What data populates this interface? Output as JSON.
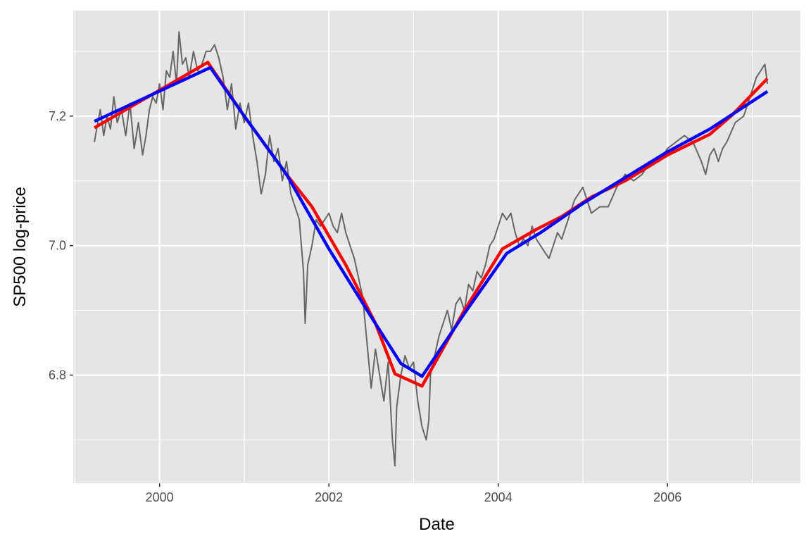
{
  "chart_data": {
    "type": "line",
    "title": "",
    "xlabel": "Date",
    "ylabel": "SP500 log-price",
    "xlim": [
      1998.98,
      2007.57
    ],
    "ylim": [
      6.633,
      7.363
    ],
    "x_ticks": [
      2000,
      2002,
      2004,
      2006
    ],
    "x_tick_labels": [
      "2000",
      "2002",
      "2004",
      "2006"
    ],
    "y_ticks": [
      6.8,
      7.0,
      7.2
    ],
    "y_tick_labels": [
      "6.8",
      "7.0",
      "7.2"
    ],
    "grid": true,
    "legend": "none",
    "colors": {
      "panel": "#e5e5e5",
      "grid": "#ffffff",
      "price": "#666666",
      "fit_red": "#ff0000",
      "fit_blue": "#0000ff"
    },
    "series": [
      {
        "color": "#666666",
        "role": "price",
        "x": [
          1999.23,
          1999.27,
          1999.3,
          1999.34,
          1999.38,
          1999.42,
          1999.46,
          1999.5,
          1999.55,
          1999.6,
          1999.65,
          1999.7,
          1999.75,
          1999.8,
          1999.84,
          1999.88,
          1999.92,
          1999.96,
          2000.0,
          2000.04,
          2000.08,
          2000.12,
          2000.16,
          2000.2,
          2000.23,
          2000.27,
          2000.31,
          2000.35,
          2000.4,
          2000.45,
          2000.5,
          2000.55,
          2000.6,
          2000.65,
          2000.7,
          2000.75,
          2000.8,
          2000.85,
          2000.9,
          2000.95,
          2001.0,
          2001.05,
          2001.1,
          2001.15,
          2001.2,
          2001.25,
          2001.3,
          2001.35,
          2001.4,
          2001.45,
          2001.5,
          2001.55,
          2001.6,
          2001.65,
          2001.7,
          2001.72,
          2001.75,
          2001.8,
          2001.85,
          2001.9,
          2001.95,
          2002.0,
          2002.05,
          2002.1,
          2002.15,
          2002.2,
          2002.25,
          2002.3,
          2002.35,
          2002.4,
          2002.45,
          2002.5,
          2002.55,
          2002.6,
          2002.65,
          2002.7,
          2002.75,
          2002.78,
          2002.8,
          2002.85,
          2002.9,
          2002.95,
          2003.0,
          2003.05,
          2003.1,
          2003.15,
          2003.18,
          2003.2,
          2003.25,
          2003.3,
          2003.35,
          2003.4,
          2003.45,
          2003.5,
          2003.55,
          2003.6,
          2003.65,
          2003.7,
          2003.75,
          2003.8,
          2003.85,
          2003.9,
          2003.95,
          2004.0,
          2004.05,
          2004.1,
          2004.15,
          2004.2,
          2004.25,
          2004.3,
          2004.35,
          2004.4,
          2004.45,
          2004.5,
          2004.55,
          2004.6,
          2004.65,
          2004.7,
          2004.75,
          2004.8,
          2004.85,
          2004.9,
          2004.95,
          2005.0,
          2005.1,
          2005.2,
          2005.3,
          2005.4,
          2005.5,
          2005.6,
          2005.7,
          2005.8,
          2005.9,
          2006.0,
          2006.1,
          2006.2,
          2006.3,
          2006.4,
          2006.45,
          2006.5,
          2006.55,
          2006.6,
          2006.65,
          2006.7,
          2006.8,
          2006.9,
          2007.0,
          2007.05,
          2007.1,
          2007.15,
          2007.18
        ],
        "y": [
          7.16,
          7.19,
          7.21,
          7.17,
          7.2,
          7.18,
          7.23,
          7.19,
          7.21,
          7.17,
          7.22,
          7.15,
          7.19,
          7.14,
          7.17,
          7.21,
          7.23,
          7.22,
          7.25,
          7.21,
          7.27,
          7.26,
          7.3,
          7.25,
          7.33,
          7.28,
          7.29,
          7.26,
          7.3,
          7.27,
          7.28,
          7.3,
          7.3,
          7.31,
          7.29,
          7.26,
          7.21,
          7.25,
          7.18,
          7.22,
          7.19,
          7.22,
          7.17,
          7.13,
          7.08,
          7.11,
          7.17,
          7.13,
          7.15,
          7.1,
          7.13,
          7.08,
          7.06,
          7.04,
          6.96,
          6.88,
          6.97,
          7.0,
          7.04,
          7.03,
          7.04,
          7.05,
          7.03,
          7.02,
          7.05,
          7.02,
          7.0,
          6.98,
          6.95,
          6.92,
          6.85,
          6.78,
          6.84,
          6.8,
          6.76,
          6.82,
          6.7,
          6.66,
          6.75,
          6.8,
          6.83,
          6.81,
          6.82,
          6.76,
          6.72,
          6.7,
          6.73,
          6.8,
          6.83,
          6.86,
          6.88,
          6.9,
          6.87,
          6.91,
          6.92,
          6.9,
          6.94,
          6.93,
          6.96,
          6.95,
          6.97,
          7.0,
          7.01,
          7.03,
          7.05,
          7.04,
          7.05,
          7.02,
          7.0,
          7.01,
          7.0,
          7.03,
          7.01,
          7.0,
          6.99,
          6.98,
          7.0,
          7.02,
          7.01,
          7.03,
          7.05,
          7.07,
          7.08,
          7.09,
          7.05,
          7.06,
          7.06,
          7.09,
          7.11,
          7.1,
          7.11,
          7.13,
          7.13,
          7.15,
          7.16,
          7.17,
          7.16,
          7.13,
          7.11,
          7.14,
          7.15,
          7.13,
          7.15,
          7.16,
          7.19,
          7.2,
          7.24,
          7.26,
          7.27,
          7.28,
          7.25
        ]
      },
      {
        "color": "#ff0000",
        "role": "fit",
        "x": [
          1999.23,
          2000.57,
          2001.0,
          2001.5,
          2001.8,
          2002.2,
          2002.55,
          2002.78,
          2003.1,
          2003.6,
          2004.05,
          2004.45,
          2004.75,
          2005.1,
          2005.5,
          2006.0,
          2006.5,
          2006.75,
          2007.18
        ],
        "y": [
          7.182,
          7.283,
          7.2,
          7.11,
          7.06,
          6.97,
          6.88,
          6.802,
          6.783,
          6.9,
          6.995,
          7.025,
          7.045,
          7.075,
          7.1,
          7.14,
          7.172,
          7.2,
          7.258
        ]
      },
      {
        "color": "#0000ff",
        "role": "fit",
        "x": [
          1999.23,
          2000.6,
          2001.0,
          2001.5,
          2002.0,
          2002.5,
          2002.85,
          2003.1,
          2003.6,
          2004.1,
          2004.5,
          2005.0,
          2005.5,
          2006.0,
          2006.5,
          2007.18
        ],
        "y": [
          7.192,
          7.275,
          7.2,
          7.11,
          6.995,
          6.89,
          6.818,
          6.798,
          6.895,
          6.988,
          7.02,
          7.065,
          7.105,
          7.145,
          7.18,
          7.238
        ]
      }
    ]
  }
}
